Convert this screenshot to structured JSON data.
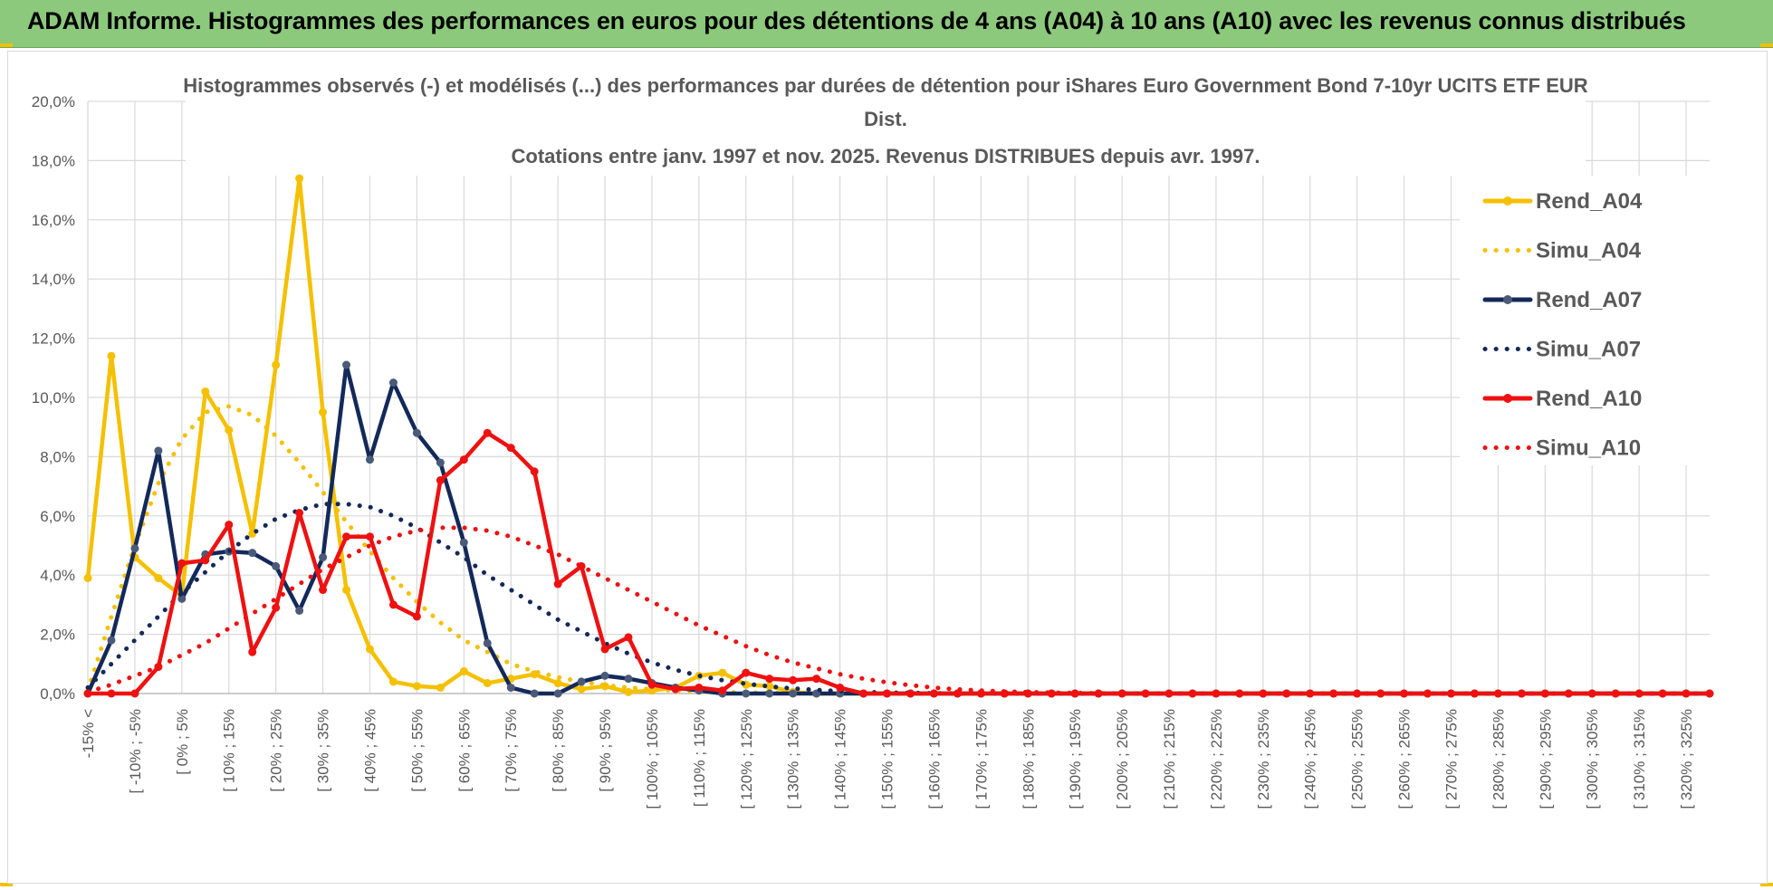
{
  "banner": {
    "title": "ADAM Informe. Histogrammes des performances en euros pour des détentions de 4 ans (A04) à 10 ans (A10) avec les revenus connus distribués"
  },
  "colors": {
    "banner_bg": "#8cc97c",
    "yellow": "#f5c000",
    "navy": "#13295a",
    "navy_marker": "#4a5a78",
    "red": "#ee1111",
    "grid": "#d9d9d9"
  },
  "chart_data": {
    "type": "line",
    "title": "Histogrammes observés (-) et modélisés (...) des performances par durées de détention pour iShares Euro Government Bond 7-10yr UCITS ETF EUR",
    "title_line2": "Dist.",
    "subtitle": "Cotations entre janv. 1997 et nov. 2025. Revenus DISTRIBUES depuis avr. 1997.",
    "xlabel": "",
    "ylabel": "",
    "ylim": [
      0,
      20
    ],
    "y_ticks": [
      "0,0%",
      "2,0%",
      "4,0%",
      "6,0%",
      "8,0%",
      "10,0%",
      "12,0%",
      "14,0%",
      "16,0%",
      "18,0%",
      "20,0%"
    ],
    "grid": true,
    "legend_position": "right",
    "x_tick_labels": [
      "-15% <",
      "[ -10% ; -5%",
      "[ 0% ; 5%",
      "[ 10% ; 15%",
      "[ 20% ; 25%",
      "[ 30% ; 35%",
      "[ 40% ; 45%",
      "[ 50% ; 55%",
      "[ 60% ; 65%",
      "[ 70% ; 75%",
      "[ 80% ; 85%",
      "[ 90% ; 95%",
      "[ 100% ; 105%",
      "[ 110% ; 115%",
      "[ 120% ; 125%",
      "[ 130% ; 135%",
      "[ 140% ; 145%",
      "[ 150% ; 155%",
      "[ 160% ; 165%",
      "[ 170% ; 175%",
      "[ 180% ; 185%",
      "[ 190% ; 195%",
      "[ 200% ; 205%",
      "[ 210% ; 215%",
      "[ 220% ; 225%",
      "[ 230% ; 235%",
      "[ 240% ; 245%",
      "[ 250% ; 255%",
      "[ 260% ; 265%",
      "[ 270% ; 275%",
      "[ 280% ; 285%",
      "[ 290% ; 295%",
      "[ 300% ; 305%",
      "[ 310% ; 315%",
      "[ 320% ; 325%"
    ],
    "series": [
      {
        "name": "Rend_A04",
        "style": "solid",
        "color": "#f5c000",
        "values": [
          3.9,
          11.4,
          4.6,
          3.9,
          3.3,
          10.2,
          8.9,
          5.4,
          11.1,
          17.4,
          9.5,
          3.5,
          1.5,
          0.4,
          0.25,
          0.2,
          0.75,
          0.35,
          0.5,
          0.65,
          0.35,
          0.15,
          0.25,
          0.05,
          0.1,
          0.2,
          0.6,
          0.7,
          0.3,
          0.25,
          0.05,
          0.0,
          0.0,
          0.0,
          0.0,
          0.0,
          0.0,
          0.0,
          0.0,
          0.0,
          0.0,
          0.0,
          0.0,
          0.0,
          0.0,
          0.0,
          0.0,
          0.0,
          0.0,
          0.0,
          0.0,
          0.0,
          0.0,
          0.0,
          0.0,
          0.0,
          0.0,
          0.0,
          0.0,
          0.0,
          0.0,
          0.0,
          0.0,
          0.0,
          0.0,
          0.0,
          0.0,
          0.0,
          0.0,
          0.0
        ]
      },
      {
        "name": "Simu_A04",
        "style": "dotted",
        "color": "#f5c000",
        "values": [
          0.1,
          2.6,
          5.0,
          7.1,
          8.6,
          9.5,
          9.7,
          9.4,
          8.7,
          7.8,
          6.8,
          5.8,
          4.8,
          3.9,
          3.1,
          2.4,
          1.8,
          1.4,
          1.0,
          0.75,
          0.55,
          0.4,
          0.28,
          0.2,
          0.14,
          0.1,
          0.07,
          0.05,
          0.03,
          0.02,
          0.01,
          0.0,
          0.0,
          0.0,
          0.0,
          0.0,
          0.0,
          0.0,
          0.0,
          0.0,
          0.0,
          0.0,
          0.0,
          0.0,
          0.0,
          0.0,
          0.0,
          0.0,
          0.0,
          0.0,
          0.0,
          0.0,
          0.0,
          0.0,
          0.0,
          0.0,
          0.0,
          0.0,
          0.0,
          0.0,
          0.0,
          0.0,
          0.0,
          0.0,
          0.0,
          0.0,
          0.0,
          0.0,
          0.0,
          0.0
        ]
      },
      {
        "name": "Rend_A07",
        "style": "solid",
        "color": "#13295a",
        "values": [
          0.0,
          1.8,
          4.9,
          8.2,
          3.2,
          4.7,
          4.8,
          4.75,
          4.3,
          2.8,
          4.6,
          11.1,
          7.9,
          10.5,
          8.8,
          7.8,
          5.1,
          1.7,
          0.2,
          0.0,
          0.0,
          0.4,
          0.6,
          0.5,
          0.35,
          0.2,
          0.1,
          0.0,
          0.0,
          0.0,
          0.0,
          0.0,
          0.0,
          0.0,
          0.0,
          0.0,
          0.0,
          0.0,
          0.0,
          0.0,
          0.0,
          0.0,
          0.0,
          0.0,
          0.0,
          0.0,
          0.0,
          0.0,
          0.0,
          0.0,
          0.0,
          0.0,
          0.0,
          0.0,
          0.0,
          0.0,
          0.0,
          0.0,
          0.0,
          0.0,
          0.0,
          0.0,
          0.0,
          0.0,
          0.0,
          0.0,
          0.0,
          0.0,
          0.0,
          0.0
        ]
      },
      {
        "name": "Simu_A07",
        "style": "dotted",
        "color": "#13295a",
        "values": [
          0.2,
          1.0,
          1.8,
          2.6,
          3.4,
          4.1,
          4.8,
          5.4,
          5.9,
          6.2,
          6.4,
          6.4,
          6.3,
          6.0,
          5.6,
          5.1,
          4.6,
          4.0,
          3.5,
          3.0,
          2.5,
          2.1,
          1.7,
          1.35,
          1.05,
          0.8,
          0.6,
          0.45,
          0.33,
          0.24,
          0.17,
          0.12,
          0.08,
          0.05,
          0.03,
          0.02,
          0.01,
          0.0,
          0.0,
          0.0,
          0.0,
          0.0,
          0.0,
          0.0,
          0.0,
          0.0,
          0.0,
          0.0,
          0.0,
          0.0,
          0.0,
          0.0,
          0.0,
          0.0,
          0.0,
          0.0,
          0.0,
          0.0,
          0.0,
          0.0,
          0.0,
          0.0,
          0.0,
          0.0,
          0.0,
          0.0,
          0.0,
          0.0,
          0.0,
          0.0
        ]
      },
      {
        "name": "Rend_A10",
        "style": "solid",
        "color": "#ee1111",
        "values": [
          0.0,
          0.0,
          0.0,
          0.9,
          4.4,
          4.5,
          5.7,
          1.4,
          2.9,
          6.1,
          3.5,
          5.3,
          5.3,
          3.0,
          2.6,
          7.2,
          7.9,
          8.8,
          8.3,
          7.5,
          3.7,
          4.3,
          1.5,
          1.9,
          0.3,
          0.15,
          0.2,
          0.1,
          0.7,
          0.5,
          0.45,
          0.5,
          0.2,
          0.0,
          0.0,
          0.0,
          0.0,
          0.0,
          0.0,
          0.0,
          0.0,
          0.0,
          0.0,
          0.0,
          0.0,
          0.0,
          0.0,
          0.0,
          0.0,
          0.0,
          0.0,
          0.0,
          0.0,
          0.0,
          0.0,
          0.0,
          0.0,
          0.0,
          0.0,
          0.0,
          0.0,
          0.0,
          0.0,
          0.0,
          0.0,
          0.0,
          0.0,
          0.0,
          0.0,
          0.0
        ]
      },
      {
        "name": "Simu_A10",
        "style": "dotted",
        "color": "#ee1111",
        "values": [
          0.05,
          0.3,
          0.6,
          0.9,
          1.3,
          1.7,
          2.2,
          2.7,
          3.2,
          3.7,
          4.2,
          4.6,
          5.0,
          5.3,
          5.5,
          5.6,
          5.6,
          5.5,
          5.3,
          5.0,
          4.7,
          4.3,
          3.9,
          3.5,
          3.1,
          2.7,
          2.3,
          1.95,
          1.6,
          1.3,
          1.05,
          0.85,
          0.65,
          0.5,
          0.38,
          0.28,
          0.2,
          0.14,
          0.1,
          0.07,
          0.05,
          0.03,
          0.02,
          0.01,
          0.0,
          0.0,
          0.0,
          0.0,
          0.0,
          0.0,
          0.0,
          0.0,
          0.0,
          0.0,
          0.0,
          0.0,
          0.0,
          0.0,
          0.0,
          0.0,
          0.0,
          0.0,
          0.0,
          0.0,
          0.0,
          0.0,
          0.0,
          0.0,
          0.0,
          0.0
        ]
      }
    ]
  }
}
